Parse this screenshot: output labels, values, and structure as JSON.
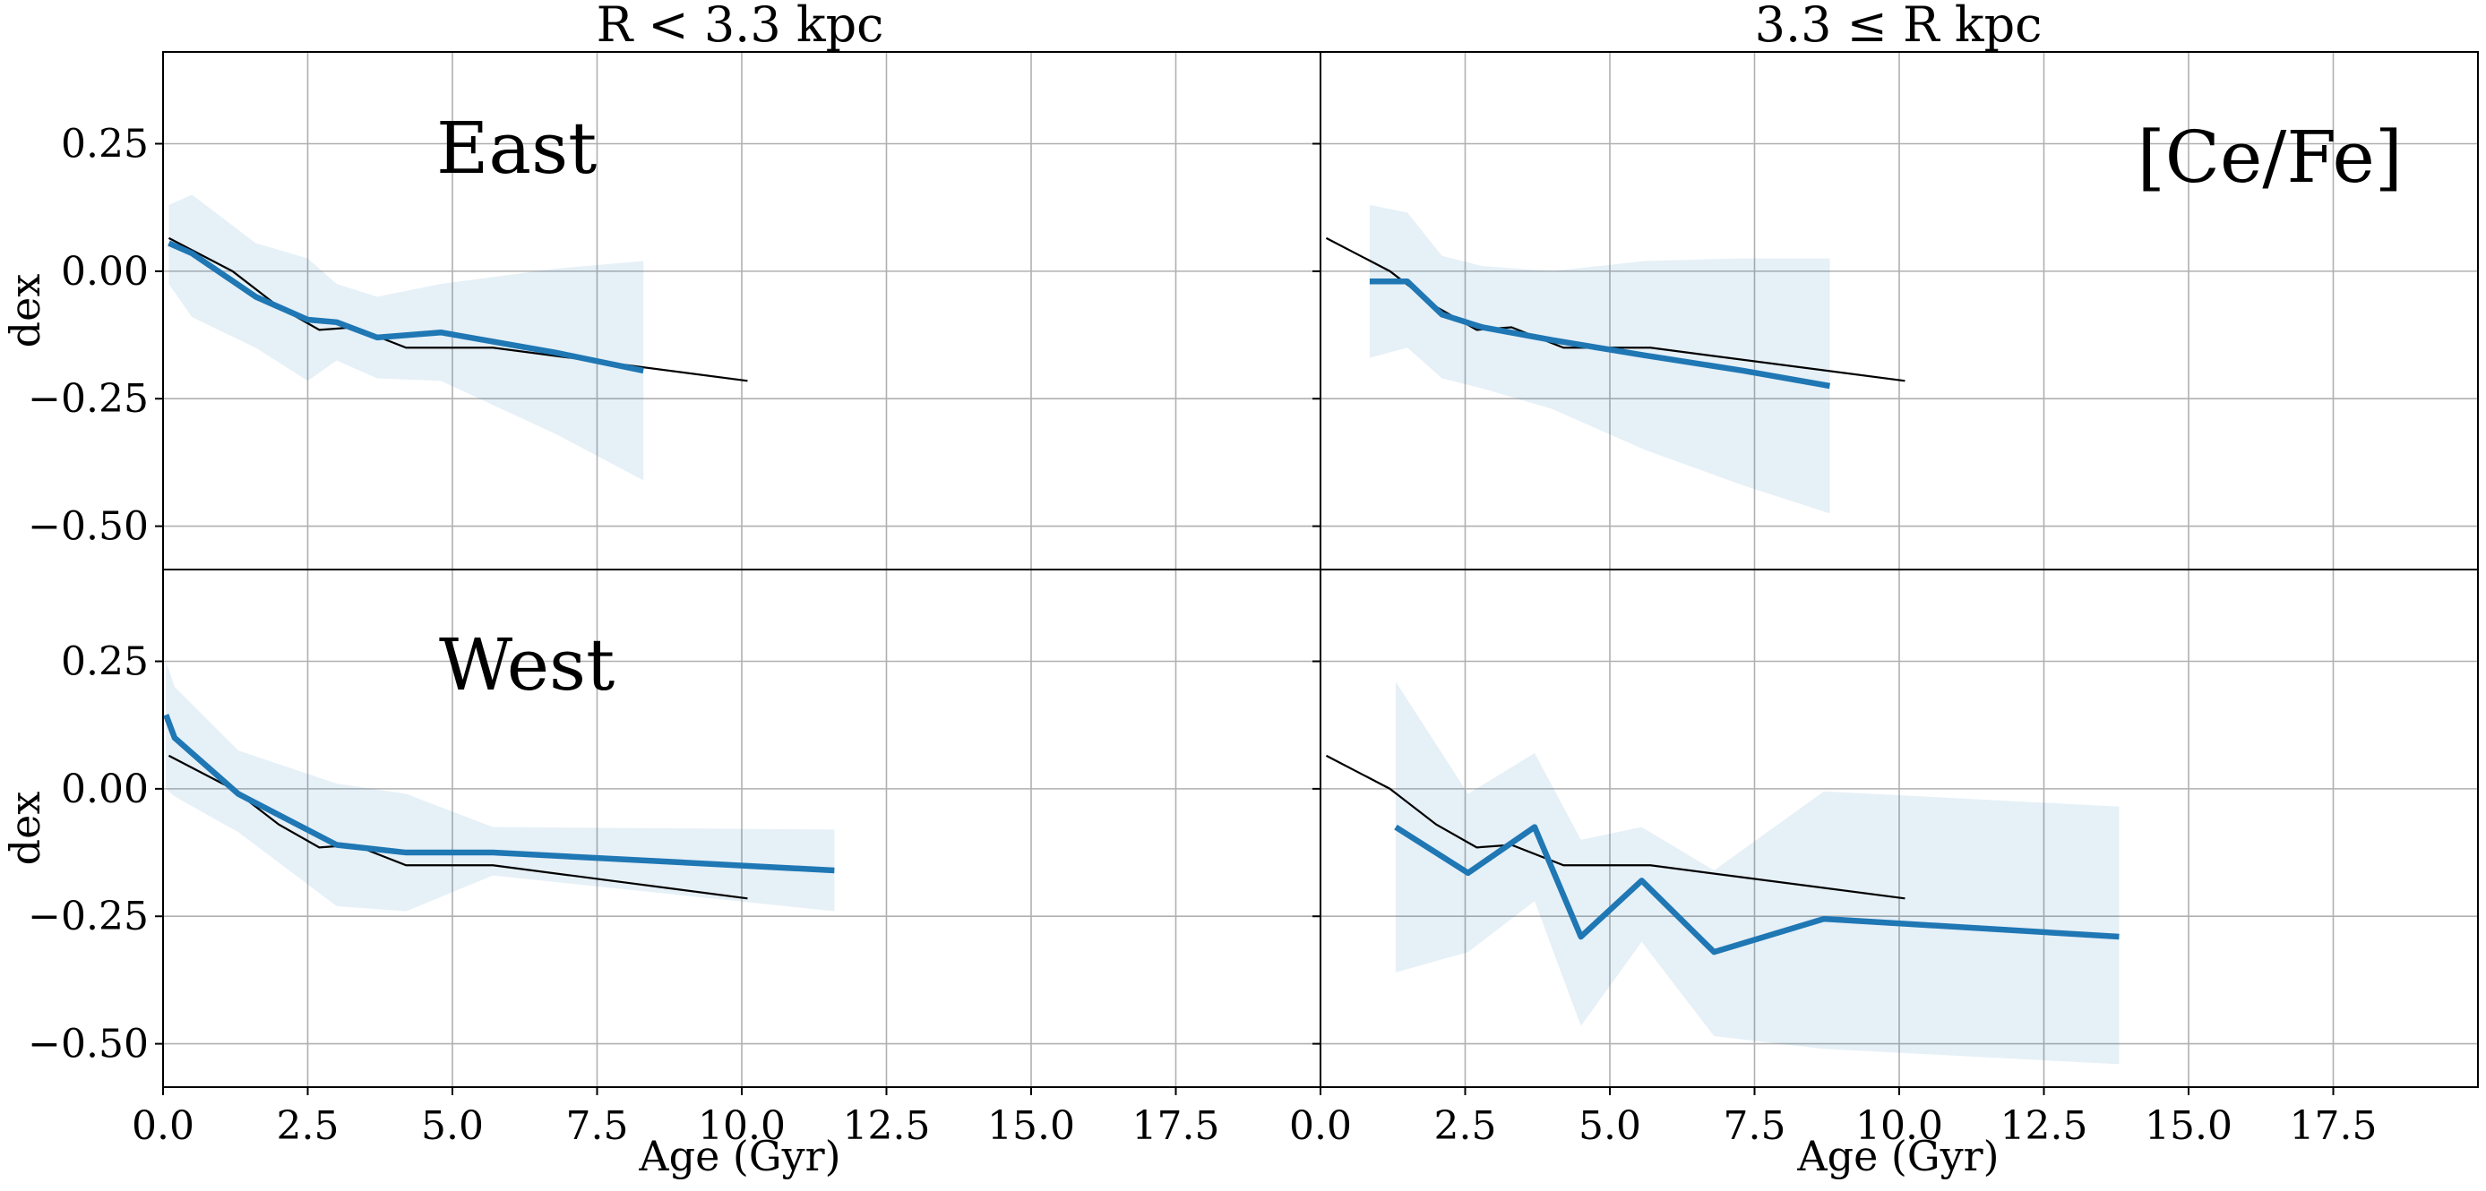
{
  "chart_data": {
    "type": "line",
    "layout": "2x2 grid, shared x axis per column, shared y axis per row",
    "column_titles": [
      "R < 3.3 kpc",
      "3.3 ≤ R kpc"
    ],
    "row_labels": [
      "East",
      "West"
    ],
    "element_label": "[Ce/Fe]",
    "xlabel": "Age (Gyr)",
    "ylabel": "dex",
    "xlim": [
      0,
      20
    ],
    "ylim": [
      -0.585,
      0.43
    ],
    "x_ticks": [
      0,
      2.5,
      5,
      7.5,
      10,
      12.5,
      15,
      17.5
    ],
    "x_tick_labels": [
      "0.0",
      "2.5",
      "5.0",
      "7.5",
      "10.0",
      "12.5",
      "15.0",
      "17.5"
    ],
    "y_ticks": [
      0.25,
      0,
      -0.25,
      -0.5
    ],
    "y_tick_labels": [
      "0.25",
      "0.00",
      "−0.25",
      "−0.50"
    ],
    "grid": true,
    "colors": {
      "series": "#1f77b4",
      "band": "#1f77b4",
      "band_opacity": 0.11,
      "reference": "#000000",
      "grid": "#b0b0b0"
    },
    "reference_line": {
      "x": [
        0.1,
        1.2,
        2.0,
        2.7,
        3.3,
        4.2,
        5.7,
        10.1
      ],
      "y": [
        0.065,
        0.0,
        -0.07,
        -0.115,
        -0.11,
        -0.15,
        -0.15,
        -0.215
      ]
    },
    "panels": [
      {
        "row": "East",
        "column": "R < 3.3 kpc",
        "x": [
          0.1,
          0.5,
          1.6,
          2.5,
          3.0,
          3.7,
          4.8,
          6.8,
          8.3
        ],
        "y": [
          0.055,
          0.035,
          -0.05,
          -0.095,
          -0.1,
          -0.13,
          -0.12,
          -0.16,
          -0.195
        ],
        "upper": [
          0.13,
          0.15,
          0.055,
          0.025,
          -0.025,
          -0.05,
          -0.025,
          0.005,
          0.02
        ],
        "lower": [
          -0.025,
          -0.09,
          -0.15,
          -0.215,
          -0.175,
          -0.21,
          -0.215,
          -0.32,
          -0.41
        ]
      },
      {
        "row": "East",
        "column": "3.3 ≤ R kpc",
        "x": [
          0.85,
          1.5,
          2.1,
          2.8,
          4.0,
          5.6,
          7.3,
          8.8
        ],
        "y": [
          -0.02,
          -0.02,
          -0.085,
          -0.11,
          -0.135,
          -0.165,
          -0.195,
          -0.225
        ],
        "upper": [
          0.13,
          0.115,
          0.03,
          0.01,
          0.0,
          0.02,
          0.025,
          0.025
        ],
        "lower": [
          -0.17,
          -0.15,
          -0.21,
          -0.23,
          -0.27,
          -0.35,
          -0.42,
          -0.475
        ]
      },
      {
        "row": "West",
        "column": "R < 3.3 kpc",
        "x": [
          0.05,
          0.2,
          1.3,
          3.0,
          4.2,
          5.7,
          11.6
        ],
        "y": [
          0.145,
          0.1,
          -0.01,
          -0.11,
          -0.125,
          -0.125,
          -0.16
        ],
        "upper": [
          0.25,
          0.2,
          0.075,
          0.01,
          -0.01,
          -0.075,
          -0.08
        ],
        "lower": [
          0.0,
          -0.015,
          -0.085,
          -0.23,
          -0.24,
          -0.17,
          -0.24
        ]
      },
      {
        "row": "West",
        "column": "3.3 ≤ R kpc",
        "x": [
          1.3,
          2.55,
          3.7,
          4.5,
          5.55,
          6.8,
          8.7,
          13.8
        ],
        "y": [
          -0.075,
          -0.165,
          -0.075,
          -0.29,
          -0.18,
          -0.32,
          -0.255,
          -0.29
        ],
        "upper": [
          0.21,
          -0.01,
          0.07,
          -0.1,
          -0.075,
          -0.16,
          -0.005,
          -0.035
        ],
        "lower": [
          -0.36,
          -0.32,
          -0.22,
          -0.465,
          -0.3,
          -0.485,
          -0.51,
          -0.54
        ]
      }
    ]
  }
}
